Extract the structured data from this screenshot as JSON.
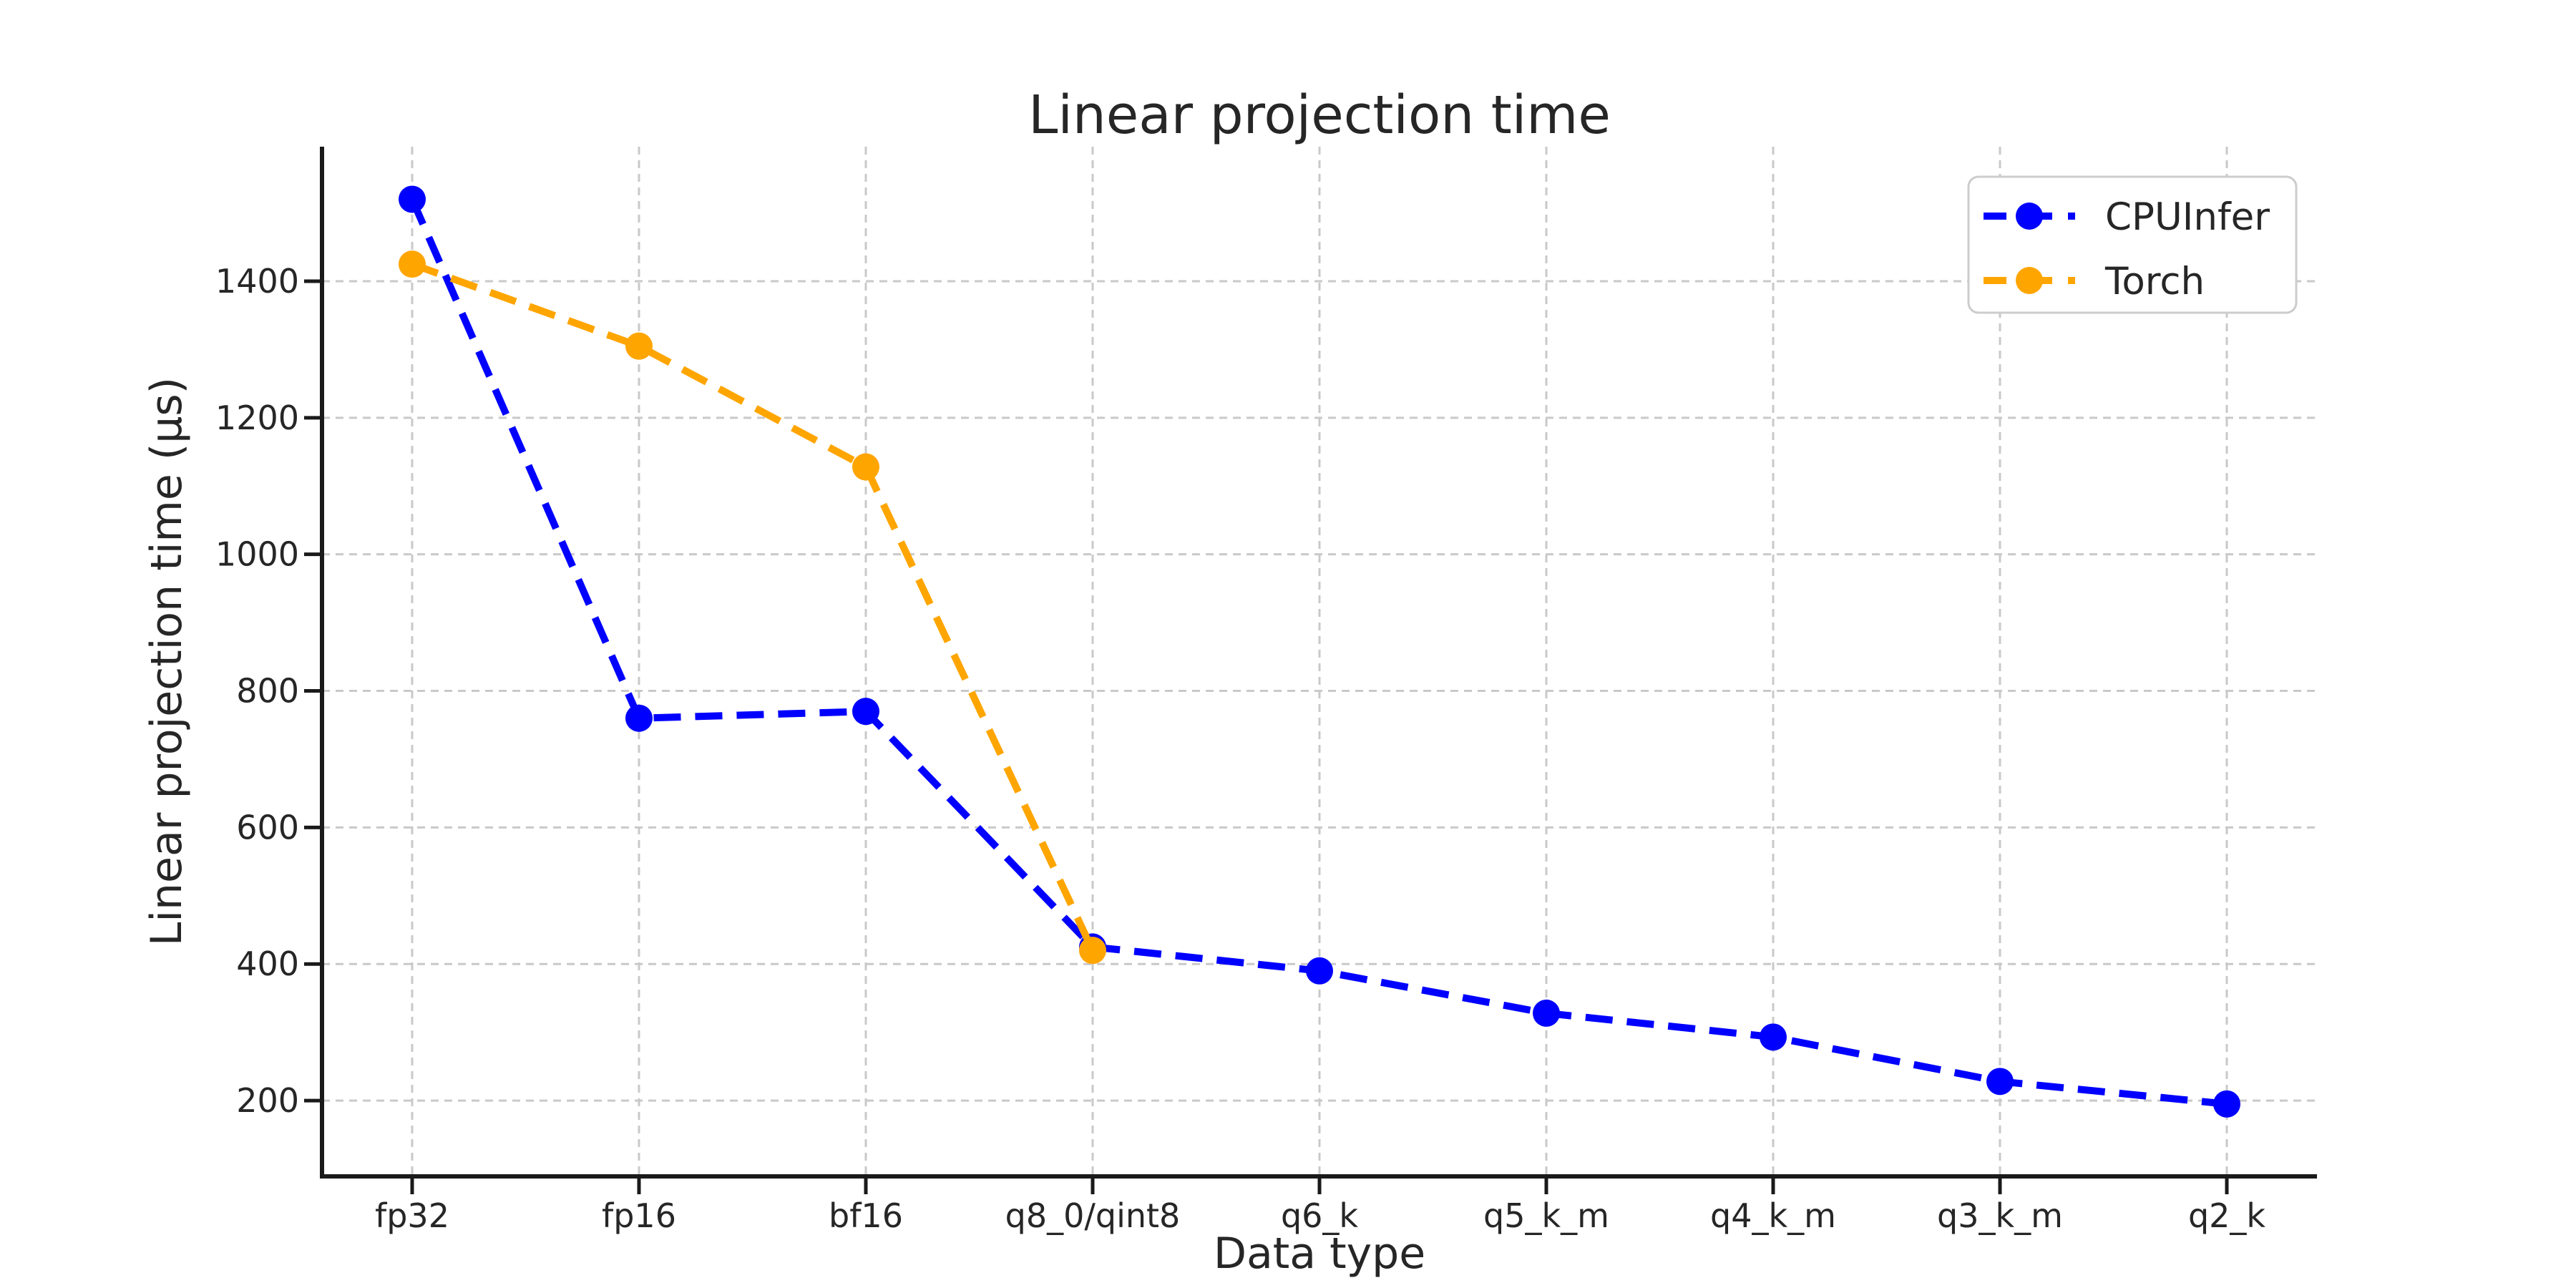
{
  "chart_data": {
    "type": "line",
    "title": "Linear projection time",
    "xlabel": "Data type",
    "ylabel": "Linear projection time (μs)",
    "categories": [
      "fp32",
      "fp16",
      "bf16",
      "q8_0/qint8",
      "q6_k",
      "q5_k_m",
      "q4_k_m",
      "q3_k_m",
      "q2_k"
    ],
    "series": [
      {
        "name": "CPUInfer",
        "color": "#0000ff",
        "line_style": "dashed",
        "marker": "circle",
        "values": [
          1520,
          760,
          770,
          425,
          390,
          328,
          293,
          228,
          195
        ]
      },
      {
        "name": "Torch",
        "color": "#ffa500",
        "line_style": "dashed",
        "marker": "circle",
        "values": [
          1425,
          1305,
          1128,
          420
        ]
      }
    ],
    "yticks": [
      200,
      400,
      600,
      800,
      1000,
      1200,
      1400
    ],
    "ylim": [
      89,
      1597
    ],
    "grid": true,
    "grid_style": "dashed",
    "legend_position": "upper right",
    "colors": {
      "text": "#262626",
      "spine": "#1a1a1a",
      "grid": "#c9c9c9",
      "legend_border": "#cccccc",
      "background": "#ffffff"
    }
  }
}
